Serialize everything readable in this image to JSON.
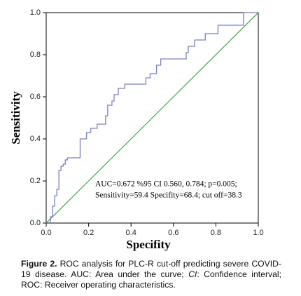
{
  "chart_data": {
    "type": "line",
    "x_label": "Specifity",
    "y_label": "Sensitivity",
    "annotation": [
      "AUC=0.672 %95 CI 0.560, 0.784; p=0.005;",
      "Sensitivity=59.4 Specifity=68.4; cut off=38.3"
    ],
    "xlim": [
      0,
      1
    ],
    "ylim": [
      0,
      1
    ],
    "xticks": [
      {
        "value": 0,
        "label": "0.0"
      },
      {
        "value": 0.2,
        "label": "0.2"
      },
      {
        "value": 0.4,
        "label": "0.4"
      },
      {
        "value": 0.6,
        "label": "0.6"
      },
      {
        "value": 0.8,
        "label": "0.8"
      },
      {
        "value": 1,
        "label": "1.0"
      }
    ],
    "yticks": [
      {
        "value": 0,
        "label": "0.0"
      },
      {
        "value": 0.2,
        "label": "0.2"
      },
      {
        "value": 0.4,
        "label": "0.4"
      },
      {
        "value": 0.6,
        "label": "0.6"
      },
      {
        "value": 0.8,
        "label": "0.8"
      },
      {
        "value": 1,
        "label": "1.0"
      }
    ],
    "series": [
      {
        "color": "#7a80c2",
        "x": [
          0.02,
          0.02,
          0.03,
          0.03,
          0.04,
          0.04,
          0.05,
          0.05,
          0.06,
          0.06,
          0.07,
          0.07,
          0.08,
          0.08,
          0.09,
          0.09,
          0.1,
          0.1,
          0.16,
          0.16,
          0.19,
          0.19,
          0.21,
          0.21,
          0.24,
          0.24,
          0.28,
          0.28,
          0.29,
          0.29,
          0.31,
          0.31,
          0.32,
          0.32,
          0.34,
          0.34,
          0.37,
          0.37,
          0.47,
          0.47,
          0.49,
          0.49,
          0.52,
          0.52,
          0.54,
          0.54,
          0.66,
          0.66,
          0.67,
          0.67,
          0.7,
          0.7,
          0.75,
          0.75,
          0.81,
          0.81,
          0.93,
          0.93,
          1.0
        ],
        "y": [
          0.0,
          0.03,
          0.03,
          0.08,
          0.08,
          0.13,
          0.13,
          0.16,
          0.16,
          0.25,
          0.25,
          0.27,
          0.27,
          0.28,
          0.28,
          0.3,
          0.3,
          0.31,
          0.31,
          0.4,
          0.4,
          0.43,
          0.43,
          0.45,
          0.45,
          0.47,
          0.47,
          0.51,
          0.51,
          0.56,
          0.56,
          0.58,
          0.58,
          0.61,
          0.61,
          0.64,
          0.64,
          0.66,
          0.66,
          0.69,
          0.69,
          0.71,
          0.71,
          0.75,
          0.75,
          0.78,
          0.78,
          0.81,
          0.81,
          0.84,
          0.84,
          0.87,
          0.87,
          0.9,
          0.9,
          0.94,
          0.94,
          1.0,
          1.0
        ]
      },
      {
        "color": "#4caf50",
        "x": [
          0,
          1
        ],
        "y": [
          0,
          1
        ]
      }
    ]
  },
  "caption": {
    "label": "Figure 2.",
    "text_1": " ROC analysis for PLC-R cut-off predicting severe COVID-19 disease. AUC: Area under the curve; ",
    "italic": "CI",
    "text_2": ": Confidence interval; ROC: Receiver operating characteristics."
  }
}
